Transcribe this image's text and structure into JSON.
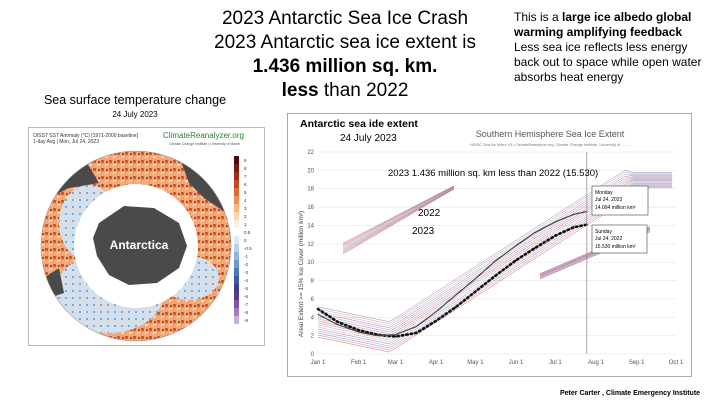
{
  "headline": {
    "line1": "2023 Antarctic Sea Ice Crash",
    "line2": "2023 Antarctic sea ice extent is",
    "line3": "1.436 million sq. km.",
    "line4_bold": "less",
    "line4_rest": " than 2022"
  },
  "note": {
    "prefix": "This is a ",
    "bold": "large ice albedo global warming amplifying feedback",
    "rest": "Less sea ice reflects less energy back out to space while open water absorbs heat energy"
  },
  "sst": {
    "title": "Sea surface temperature change",
    "date": "24 July 2023",
    "map_header1": "OISST SST Anomaly (°C) [1971-2000 baseline]",
    "map_header2": "1-day Avg | Mon, Jul 24, 2023",
    "brand": "ClimateReanalyzer.org",
    "brand_sub": "Climate Change Institute | University of Maine",
    "map_label": "Antarctica",
    "colorbar_ticks": [
      "9",
      "8",
      "7",
      "6",
      "5",
      "4",
      "3",
      "2",
      "1",
      "0.5",
      "0",
      "-0.5",
      "-1",
      "-2",
      "-3",
      "-4",
      "-5",
      "-6",
      "-7",
      "-8",
      "-9"
    ]
  },
  "chart": {
    "title": "Southern Hemisphere Sea Ice Extent",
    "subtitle": "NSIDC Sea Ice Index V3 | ClimateReanalyzer.org, Climate Change Institute, University of ........",
    "overlay_title": "Antarctic sea ide extent",
    "overlay_date": "24 July 2023",
    "annotation": "2023 1.436 million sq. km less than 2022 (15.530)",
    "label_2022": "2022",
    "label_2023": "2023",
    "callout_2023": [
      "Monday",
      "Jul 24, 2023",
      "14.094 million km²"
    ],
    "callout_2022": [
      "Sunday",
      "Jul 24, 2022",
      "15.530 million km²"
    ],
    "ylabel": "Areal Extent >= 15% Ice Cover (million km²)",
    "footer": "Peter Carter , Climate Emergency Institute"
  },
  "chart_data": {
    "type": "line",
    "title": "Southern Hemisphere Sea Ice Extent",
    "ylabel": "Areal Extent >= 15% Ice Cover (million km²)",
    "x_ticks": [
      "Jan 1",
      "Feb 1",
      "Mar 1",
      "Apr 1",
      "May 1",
      "Jun 1",
      "Jul 1",
      "Aug 1",
      "Sep 1",
      "Oct 1"
    ],
    "y_ticks": [
      0,
      2,
      4,
      6,
      8,
      10,
      12,
      14,
      16,
      18,
      20,
      22
    ],
    "ylim": [
      0,
      22
    ],
    "series": [
      {
        "name": "2023",
        "x": [
          0,
          15,
          31,
          45,
          59,
          75,
          90,
          105,
          120,
          135,
          151,
          165,
          181,
          195,
          205
        ],
        "y": [
          4.9,
          3.5,
          2.6,
          2.1,
          1.9,
          2.3,
          3.6,
          5.1,
          6.8,
          8.5,
          10.2,
          11.5,
          12.9,
          13.8,
          14.094
        ]
      },
      {
        "name": "2022",
        "x": [
          0,
          15,
          31,
          45,
          59,
          75,
          90,
          105,
          120,
          135,
          151,
          165,
          181,
          195,
          205
        ],
        "y": [
          4.3,
          3.2,
          2.4,
          2.0,
          2.1,
          3.0,
          4.6,
          6.4,
          8.2,
          10.1,
          11.8,
          13.2,
          14.4,
          15.2,
          15.53
        ]
      }
    ]
  },
  "colors": {
    "chart_bg": "#ffffff",
    "ocean_bg": "#ffffff",
    "land": "#4a4a4a",
    "dots": "#111111"
  }
}
